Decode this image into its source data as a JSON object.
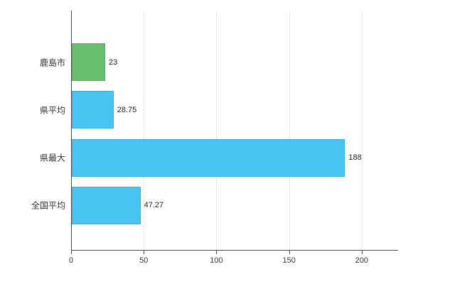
{
  "chart_data": {
    "type": "bar",
    "orientation": "horizontal",
    "title": "",
    "xlabel": "",
    "ylabel": "",
    "categories": [
      "鹿島市",
      "県平均",
      "県最大",
      "全国平均"
    ],
    "values": [
      23,
      28.75,
      188,
      47.27
    ],
    "value_labels": [
      "23",
      "28.75",
      "188",
      "47.27"
    ],
    "bar_colors": [
      "#68c06e",
      "#49c3f1",
      "#49c3f1",
      "#49c3f1"
    ],
    "bar_border_colors": [
      "#55a95c",
      "#35aedd",
      "#35aedd",
      "#35aedd"
    ],
    "x_ticks": [
      0,
      50,
      100,
      150,
      200
    ],
    "xlim": [
      0,
      225
    ],
    "grid": true,
    "legend_position": "none"
  },
  "colors": {
    "axis": "#4a4a4a",
    "gridline": "#e8e8e8",
    "text": "#333333",
    "background": "#ffffff"
  }
}
